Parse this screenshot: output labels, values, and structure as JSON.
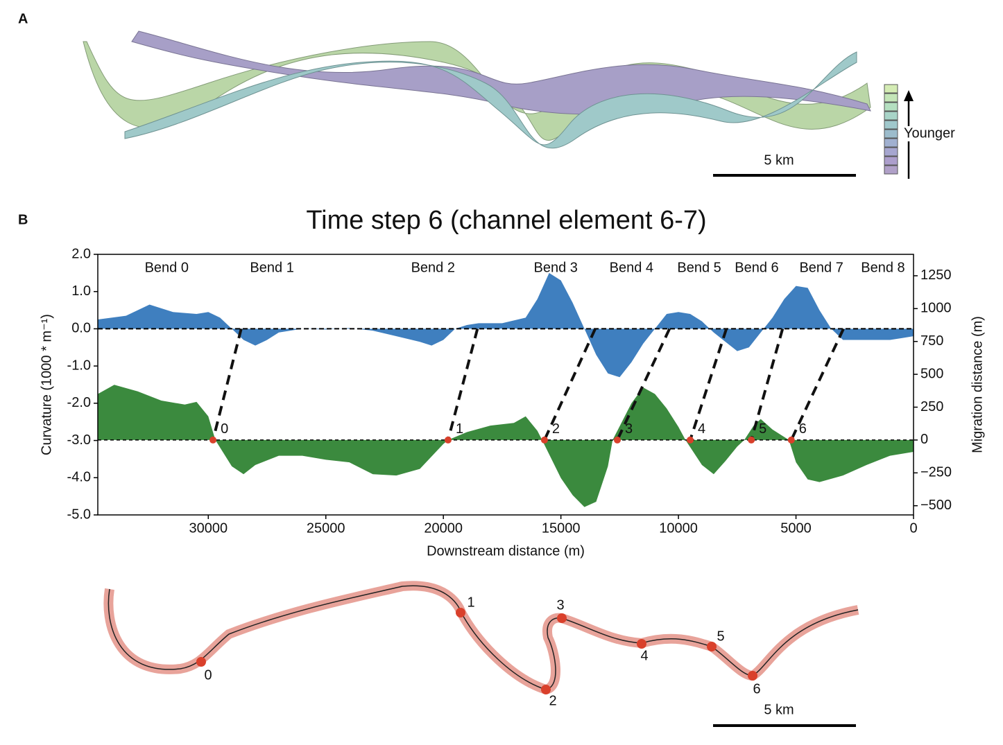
{
  "panel_a": {
    "label": "A",
    "legend_text": "Younger",
    "scale_bar": "5 km"
  },
  "panel_b_label": "B",
  "chart_data": {
    "type": "area",
    "title": "Time step 6 (channel element 6-7)",
    "x_label": "Downstream distance (m)",
    "y_label": "Curvature (1000 * m⁻¹)",
    "y2_label": "Migration distance (m)",
    "xlim": [
      34700,
      0
    ],
    "xticks": [
      30000,
      25000,
      20000,
      15000,
      10000,
      5000,
      0
    ],
    "ylim": [
      -5,
      2
    ],
    "yticks": [
      {
        "value": 2,
        "label": "2.0"
      },
      {
        "value": 1,
        "label": "1.0"
      },
      {
        "value": 0,
        "label": "0.0"
      },
      {
        "value": -1,
        "label": "-1.0"
      },
      {
        "value": -2,
        "label": "-2.0"
      },
      {
        "value": -3,
        "label": "-3.0"
      },
      {
        "value": -4,
        "label": "-4.0"
      },
      {
        "value": -5,
        "label": "-5.0"
      }
    ],
    "y2lim": [
      -570,
      1413
    ],
    "y2ticks": [
      1250,
      1000,
      750,
      500,
      250,
      0,
      {
        "value": -250,
        "label": "−250"
      },
      {
        "value": -500,
        "label": "−500"
      }
    ],
    "series": [
      {
        "color": "#3f7fbf",
        "axis": "y",
        "x": [
          34700,
          33500,
          32500,
          31500,
          30500,
          30000,
          29500,
          29000,
          28500,
          28000,
          27500,
          27000,
          26000,
          25000,
          24000,
          23000,
          22000,
          21000,
          20500,
          20000,
          19500,
          19000,
          18500,
          17500,
          16500,
          16000,
          15500,
          15000,
          14500,
          14000,
          13500,
          13000,
          12500,
          12000,
          11500,
          11000,
          10500,
          10000,
          9500,
          9000,
          8500,
          8000,
          7500,
          7000,
          6500,
          6000,
          5500,
          5000,
          4500,
          4000,
          3500,
          3000,
          2500,
          2000,
          1500,
          1000,
          500,
          0
        ],
        "values": [
          0.25,
          0.35,
          0.65,
          0.45,
          0.4,
          0.45,
          0.3,
          0.0,
          -0.3,
          -0.45,
          -0.3,
          -0.1,
          0.0,
          -0.02,
          0.02,
          -0.05,
          -0.2,
          -0.35,
          -0.45,
          -0.3,
          0.0,
          0.1,
          0.15,
          0.15,
          0.3,
          0.8,
          1.5,
          1.3,
          0.7,
          0.0,
          -0.7,
          -1.2,
          -1.3,
          -0.9,
          -0.4,
          0.0,
          0.4,
          0.45,
          0.4,
          0.2,
          -0.1,
          -0.35,
          -0.6,
          -0.5,
          -0.1,
          0.3,
          0.8,
          1.15,
          1.1,
          0.5,
          0.0,
          -0.3,
          -0.3,
          -0.3,
          -0.3,
          -0.3,
          -0.25,
          -0.2
        ]
      },
      {
        "color": "#3b8a3e",
        "axis": "y2",
        "x": [
          34700,
          34000,
          33000,
          32000,
          31000,
          30500,
          30000,
          29700,
          29000,
          28500,
          28000,
          27000,
          26000,
          25000,
          24000,
          23000,
          22000,
          21000,
          20000,
          19800,
          19000,
          18000,
          17000,
          16500,
          16000,
          15800,
          15000,
          14500,
          14000,
          13500,
          13000,
          12800,
          12000,
          11500,
          11000,
          10500,
          10000,
          9700,
          9000,
          8500,
          8000,
          7500,
          7200,
          6800,
          6500,
          6000,
          5300,
          5000,
          4500,
          4000,
          3000,
          2000,
          1000,
          0
        ],
        "values": [
          350,
          420,
          370,
          300,
          270,
          290,
          180,
          0,
          -200,
          -260,
          -190,
          -120,
          -120,
          -150,
          -170,
          -260,
          -270,
          -220,
          -30,
          0,
          60,
          110,
          130,
          180,
          70,
          0,
          -290,
          -420,
          -510,
          -470,
          -200,
          0,
          280,
          400,
          350,
          240,
          100,
          0,
          -190,
          -260,
          -160,
          -50,
          0,
          110,
          160,
          80,
          0,
          -170,
          -300,
          -320,
          -270,
          -190,
          -120,
          -90
        ]
      }
    ],
    "bend_labels": {
      "text": [
        "Bend 0",
        "Bend 1",
        "Bend 2",
        "Bend 3",
        "Bend 4",
        "Bend 5",
        "Bend 6",
        "Bend 7",
        "Bend 8"
      ],
      "x": [
        31770,
        27290,
        20440,
        15220,
        12000,
        9115,
        6670,
        3920,
        1300
      ]
    },
    "inflection_points": {
      "labels": [
        "0",
        "1",
        "2",
        "3",
        "4",
        "5",
        "6"
      ],
      "x": [
        29800,
        19800,
        15700,
        12600,
        9500,
        6900,
        5200
      ]
    },
    "links": {
      "curvature_x": [
        28600,
        18550,
        13540,
        10380,
        7960,
        5570,
        2980
      ],
      "migration_x": [
        29800,
        19800,
        15700,
        12600,
        9500,
        6900,
        5200
      ]
    }
  },
  "panel_c_scale_bar": "5 km"
}
